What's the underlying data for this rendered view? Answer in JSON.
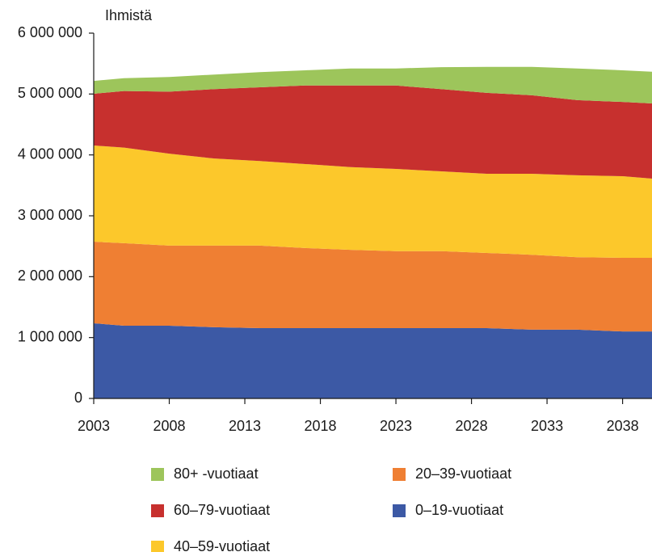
{
  "chart_data": {
    "type": "stacked_area",
    "y_label": "Ihmistä",
    "x": [
      2003,
      2005,
      2008,
      2011,
      2014,
      2017,
      2020,
      2023,
      2026,
      2029,
      2032,
      2035,
      2038,
      2040
    ],
    "series": [
      {
        "name": "0–19-vuotiaat",
        "color": "#3c59a5",
        "values": [
          1235000,
          1195000,
          1195000,
          1170000,
          1155000,
          1155000,
          1155000,
          1155000,
          1155000,
          1155000,
          1130000,
          1130000,
          1100000,
          1100000
        ]
      },
      {
        "name": "20–39-vuotiaat",
        "color": "#ef7f33",
        "values": [
          1340000,
          1355000,
          1315000,
          1340000,
          1355000,
          1315000,
          1285000,
          1265000,
          1265000,
          1235000,
          1230000,
          1190000,
          1210000,
          1210000
        ]
      },
      {
        "name": "40–59-vuotiaat",
        "color": "#fcc82b",
        "values": [
          1580000,
          1570000,
          1510000,
          1430000,
          1390000,
          1380000,
          1360000,
          1350000,
          1310000,
          1300000,
          1330000,
          1345000,
          1340000,
          1300000
        ]
      },
      {
        "name": "60–79-vuotiaat",
        "color": "#c7302e",
        "values": [
          850000,
          930000,
          1020000,
          1140000,
          1210000,
          1290000,
          1340000,
          1370000,
          1350000,
          1330000,
          1290000,
          1235000,
          1220000,
          1235000
        ]
      },
      {
        "name": "80+ -vuotiaat",
        "color": "#9dc55b",
        "values": [
          210000,
          210000,
          240000,
          240000,
          250000,
          250000,
          280000,
          280000,
          360000,
          425000,
          465000,
          520000,
          520000,
          520000
        ]
      }
    ],
    "xlim": [
      2003,
      2040
    ],
    "xticks": [
      2003,
      2008,
      2013,
      2018,
      2023,
      2028,
      2033,
      2038
    ],
    "ylim": [
      0,
      6000000
    ],
    "yticks": [
      0,
      {
        "value": 1000000,
        "label": "1 000 000"
      },
      {
        "value": 2000000,
        "label": "2 000 000"
      },
      {
        "value": 3000000,
        "label": "3 000 000"
      },
      {
        "value": 4000000,
        "label": "4 000 000"
      },
      {
        "value": 5000000,
        "label": "5 000 000"
      },
      {
        "value": 6000000,
        "label": "6 000 000"
      }
    ],
    "grid": false
  }
}
